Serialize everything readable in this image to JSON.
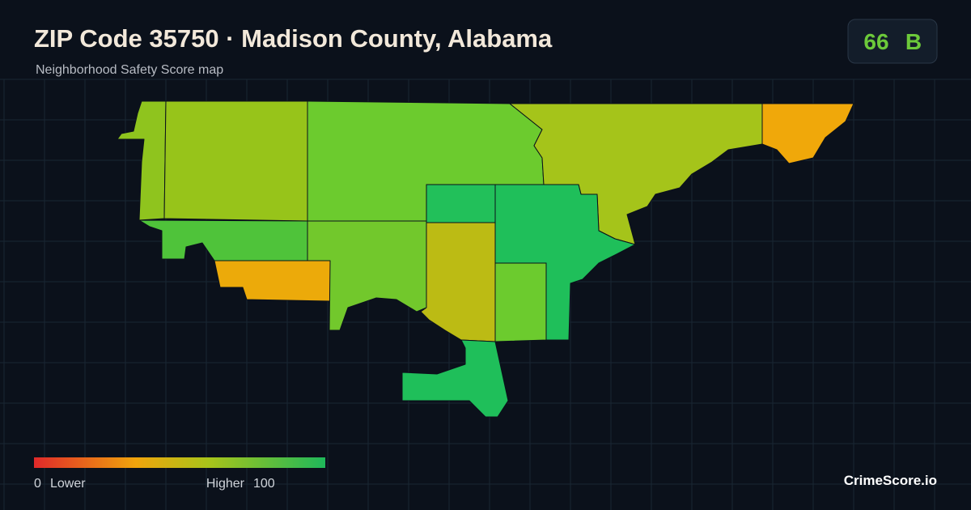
{
  "header": {
    "title": "ZIP Code 35750 · Madison County, Alabama",
    "subtitle": "Neighborhood Safety Score map"
  },
  "badge": {
    "score": 66,
    "grade": "B"
  },
  "legend": {
    "min": 0,
    "min_label": "Lower",
    "max_label": "Higher",
    "max": 100
  },
  "brand": "CrimeScore.io"
}
